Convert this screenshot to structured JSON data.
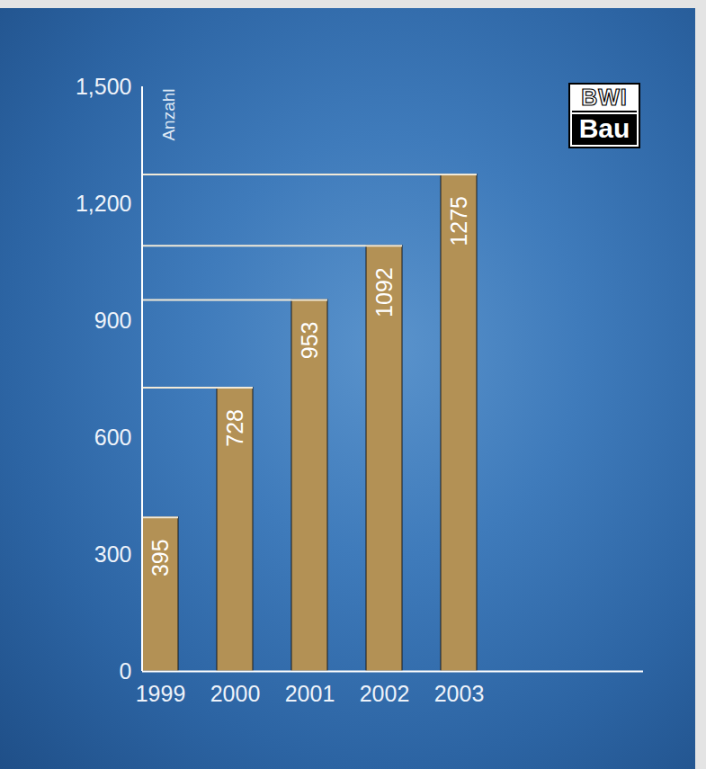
{
  "chart_data": {
    "type": "bar",
    "y_label": "Anzahl",
    "categories": [
      "1999",
      "2000",
      "2001",
      "2002",
      "2003"
    ],
    "values": [
      395,
      728,
      953,
      1092,
      1275
    ],
    "color": "#b39155",
    "ylim": [
      0,
      1500
    ],
    "yticks": [
      0,
      300,
      600,
      900,
      1200,
      1500
    ],
    "grid": false,
    "data_labels": true,
    "annotations": [
      "BWI",
      "Bau"
    ]
  }
}
